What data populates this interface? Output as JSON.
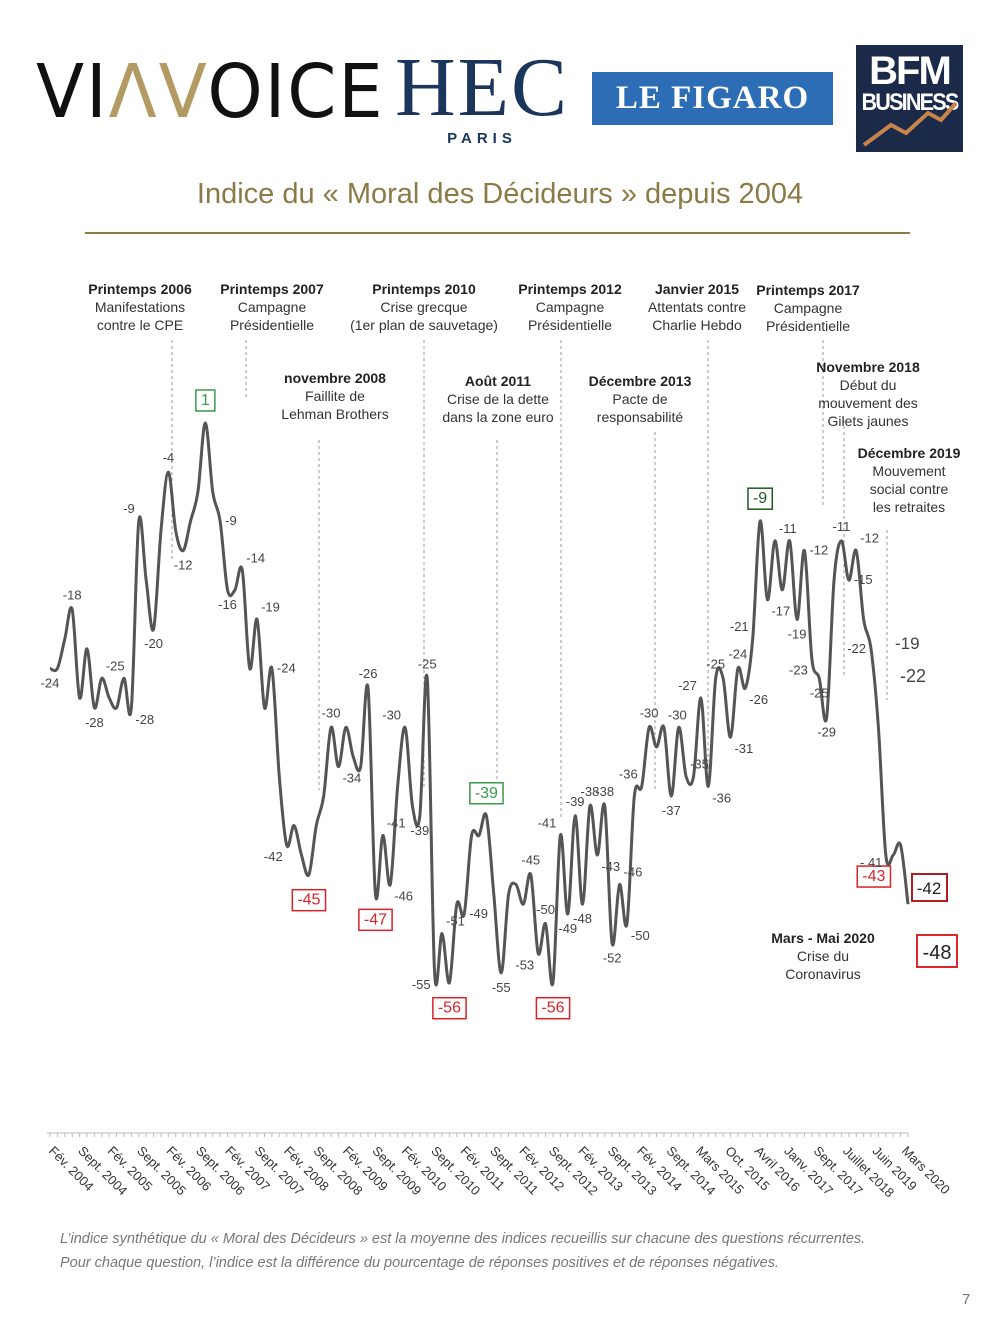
{
  "logos": {
    "viavoice": {
      "pre": "VI",
      "accent": "ΛV",
      "post": "OICE"
    },
    "hec": {
      "main": "HEC",
      "sub": "PARIS"
    },
    "figaro": "LE FIGARO",
    "bfm": {
      "line1": "BFM",
      "line2": "BUSINESS"
    }
  },
  "colors": {
    "title": "#8b7a45",
    "line": "#555555",
    "box_green": "#3a9a4a",
    "box_dark_green": "#1d5a1d",
    "box_red": "#d9232a",
    "box_dark_red": "#b01c22"
  },
  "events": [
    {
      "title": "Printemps 2006",
      "lines": [
        "Manifestations",
        "contre le CPE"
      ]
    },
    {
      "title": "Printemps 2007",
      "lines": [
        "Campagne",
        "Présidentielle"
      ]
    },
    {
      "title": "novembre 2008",
      "lines": [
        "Faillite de",
        "Lehman Brothers"
      ]
    },
    {
      "title": "Printemps 2010",
      "lines": [
        "Crise grecque",
        "(1er plan de sauvetage)"
      ]
    },
    {
      "title": "Août 2011",
      "lines": [
        "Crise de la dette",
        "dans la zone euro"
      ]
    },
    {
      "title": "Printemps 2012",
      "lines": [
        "Campagne",
        "Présidentielle"
      ]
    },
    {
      "title": "Décembre 2013",
      "lines": [
        "Pacte de",
        "responsabilité"
      ]
    },
    {
      "title": "Janvier 2015",
      "lines": [
        "Attentats contre",
        "Charlie Hebdo"
      ]
    },
    {
      "title": "Printemps 2017",
      "lines": [
        "Campagne",
        "Présidentielle"
      ]
    },
    {
      "title": "Novembre 2018",
      "lines": [
        "Début du",
        "mouvement des",
        "Gilets jaunes"
      ]
    },
    {
      "title": "Décembre 2019",
      "lines": [
        "Mouvement",
        "social contre",
        "les retraites"
      ]
    },
    {
      "title": "Mars - Mai 2020",
      "lines": [
        "Crise du",
        "Coronavirus"
      ]
    }
  ],
  "chart_data": {
    "type": "line",
    "title": "Indice du « Moral des Décideurs » depuis 2004",
    "xlabel": "",
    "ylabel": "",
    "ylim": [
      -60,
      5
    ],
    "grid": false,
    "x_tick_labels": [
      "Fév. 2004",
      "Sept. 2004",
      "Fév. 2005",
      "Sept. 2005",
      "Fév. 2006",
      "Sept. 2006",
      "Fév. 2007",
      "Sept. 2007",
      "Fév. 2008",
      "Sept. 2008",
      "Fév. 2009",
      "Sept. 2009",
      "Fév. 2010",
      "Sept. 2010",
      "Fév. 2011",
      "Sept. 2011",
      "Fév. 2012",
      "Sept. 2012",
      "Fév. 2013",
      "Sept. 2013",
      "Fév. 2014",
      "Sept. 2014",
      "Mars 2015",
      "Oct. 2015",
      "Avril 2016",
      "Janv. 2017",
      "Sept. 2017",
      "Juillet 2018",
      "Juin 2019",
      "Mars 2020"
    ],
    "points": [
      {
        "v": -24,
        "pos": "below"
      },
      {
        "v": -24
      },
      {
        "v": -21
      },
      {
        "v": -18,
        "pos": "above"
      },
      {
        "v": -27
      },
      {
        "v": -22
      },
      {
        "v": -28,
        "pos": "below"
      },
      {
        "v": -25,
        "pos": "above-right"
      },
      {
        "v": -27
      },
      {
        "v": -28
      },
      {
        "v": -25
      },
      {
        "v": -28,
        "pos": "below-right"
      },
      {
        "v": -9,
        "pos": "above-left"
      },
      {
        "v": -15
      },
      {
        "v": -20,
        "pos": "below"
      },
      {
        "v": -10
      },
      {
        "v": -4,
        "pos": "above"
      },
      {
        "v": -10
      },
      {
        "v": -12,
        "pos": "below"
      },
      {
        "v": -9
      },
      {
        "v": -6
      },
      {
        "v": 1,
        "pos": "above",
        "box": "green"
      },
      {
        "v": -6
      },
      {
        "v": -9,
        "pos": "right"
      },
      {
        "v": -16,
        "pos": "below"
      },
      {
        "v": -16
      },
      {
        "v": -14,
        "pos": "above-right"
      },
      {
        "v": -24
      },
      {
        "v": -19,
        "pos": "above-right"
      },
      {
        "v": -28
      },
      {
        "v": -24,
        "pos": "right"
      },
      {
        "v": -35
      },
      {
        "v": -42,
        "pos": "below-left"
      },
      {
        "v": -40
      },
      {
        "v": -43
      },
      {
        "v": -45,
        "pos": "below",
        "box": "red"
      },
      {
        "v": -40
      },
      {
        "v": -37
      },
      {
        "v": -30,
        "pos": "above"
      },
      {
        "v": -34,
        "pos": "below-right"
      },
      {
        "v": -30
      },
      {
        "v": -33
      },
      {
        "v": -34
      },
      {
        "v": -26,
        "pos": "above"
      },
      {
        "v": -47,
        "pos": "below",
        "box": "red"
      },
      {
        "v": -41,
        "pos": "above-right"
      },
      {
        "v": -46,
        "pos": "below-right"
      },
      {
        "v": -36
      },
      {
        "v": -30,
        "pos": "above-left"
      },
      {
        "v": -38
      },
      {
        "v": -39,
        "pos": "below"
      },
      {
        "v": -25,
        "pos": "above"
      },
      {
        "v": -55,
        "pos": "below-left"
      },
      {
        "v": -51,
        "pos": "above-right"
      },
      {
        "v": -56,
        "pos": "below",
        "box": "red"
      },
      {
        "v": -48
      },
      {
        "v": -49,
        "pos": "right"
      },
      {
        "v": -41
      },
      {
        "v": -41
      },
      {
        "v": -39,
        "pos": "above",
        "box": "green"
      },
      {
        "v": -47
      },
      {
        "v": -55,
        "pos": "below"
      },
      {
        "v": -47
      },
      {
        "v": -46
      },
      {
        "v": -48
      },
      {
        "v": -45,
        "pos": "above"
      },
      {
        "v": -53,
        "pos": "below-left"
      },
      {
        "v": -50,
        "pos": "above"
      },
      {
        "v": -56,
        "pos": "below",
        "box": "red"
      },
      {
        "v": -41,
        "pos": "above-left"
      },
      {
        "v": -49,
        "pos": "below"
      },
      {
        "v": -39,
        "pos": "above"
      },
      {
        "v": -48,
        "pos": "below"
      },
      {
        "v": -38,
        "pos": "above"
      },
      {
        "v": -43,
        "pos": "below-right"
      },
      {
        "v": -38,
        "pos": "above"
      },
      {
        "v": -52,
        "pos": "below"
      },
      {
        "v": -46,
        "pos": "above-right"
      },
      {
        "v": -50,
        "pos": "below-right"
      },
      {
        "v": -37
      },
      {
        "v": -36,
        "pos": "above-left"
      },
      {
        "v": -30,
        "pos": "above"
      },
      {
        "v": -32
      },
      {
        "v": -30,
        "pos": "above-right"
      },
      {
        "v": -37,
        "pos": "below"
      },
      {
        "v": -30
      },
      {
        "v": -35,
        "pos": "above-right"
      },
      {
        "v": -35
      },
      {
        "v": -27,
        "pos": "above-left"
      },
      {
        "v": -36,
        "pos": "below-right"
      },
      {
        "v": -25,
        "pos": "above"
      },
      {
        "v": -25
      },
      {
        "v": -31,
        "pos": "below-right"
      },
      {
        "v": -24,
        "pos": "above"
      },
      {
        "v": -26,
        "pos": "below-right"
      },
      {
        "v": -21,
        "pos": "above-left"
      },
      {
        "v": -9,
        "pos": "above",
        "box": "dark_green"
      },
      {
        "v": -17,
        "pos": "below-right"
      },
      {
        "v": -11,
        "pos": "above-right"
      },
      {
        "v": -16
      },
      {
        "v": -11
      },
      {
        "v": -19,
        "pos": "below"
      },
      {
        "v": -12,
        "pos": "right"
      },
      {
        "v": -23,
        "pos": "below-left"
      },
      {
        "v": -25,
        "pos": "below"
      },
      {
        "v": -29,
        "pos": "below"
      },
      {
        "v": -15
      },
      {
        "v": -11,
        "pos": "above"
      },
      {
        "v": -15,
        "pos": "right"
      },
      {
        "v": -12,
        "pos": "above-right"
      },
      {
        "v": -19
      },
      {
        "v": -22,
        "pos": "left"
      },
      {
        "v": -30
      },
      {
        "v": -43,
        "pos": "below-left",
        "box": "red"
      },
      {
        "v": -43
      },
      {
        "v": -42
      },
      {
        "v": -48
      }
    ],
    "side_labels": {
      "a": "-19",
      "b": "-22",
      "c": "- 41",
      "d": "-42",
      "e": "-48"
    }
  },
  "footnote": [
    "L’indice synthétique du « Moral des Décideurs » est la moyenne des indices recueillis sur chacune des questions récurrentes.",
    "Pour chaque question, l’indice est la différence du pourcentage de réponses positives et de réponses négatives."
  ],
  "page_number": "7"
}
